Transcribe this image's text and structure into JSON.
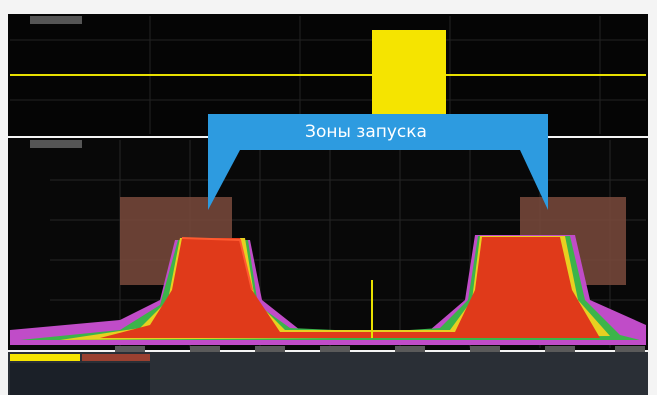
{
  "callout": {
    "label": "Зоны запуска"
  }
}
